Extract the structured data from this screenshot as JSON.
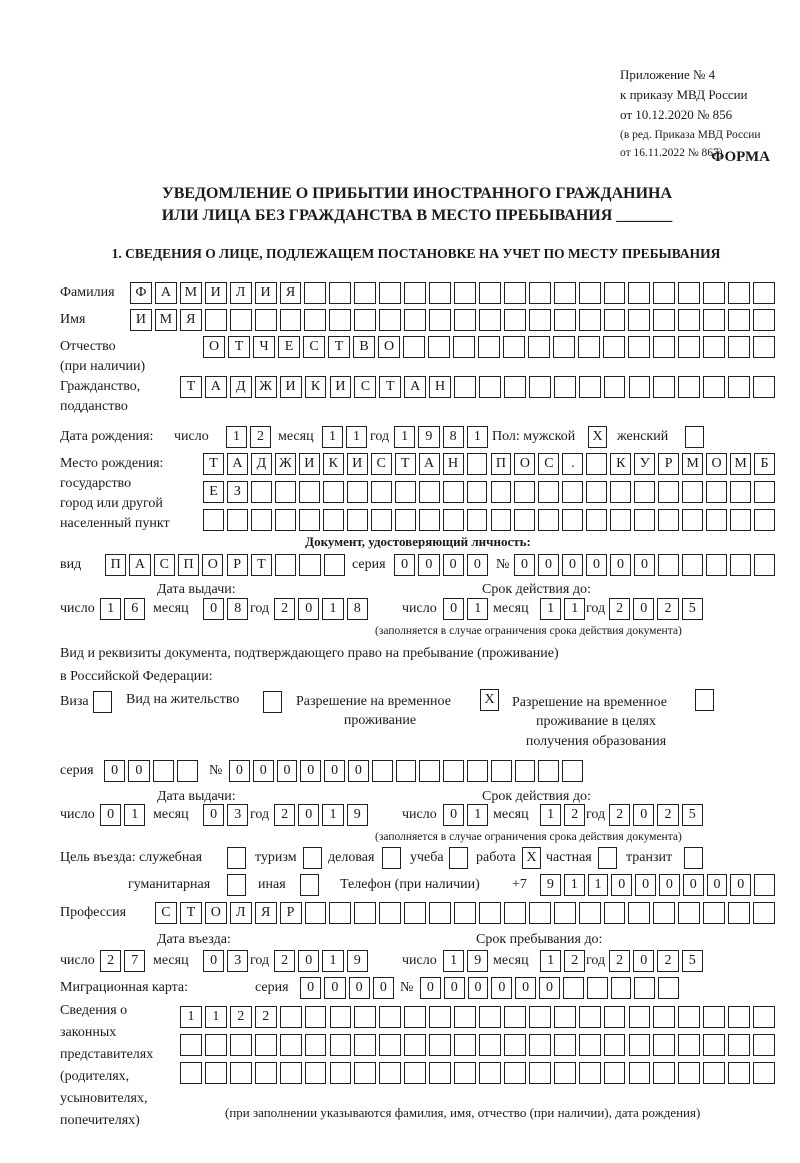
{
  "header": {
    "appendix": [
      "Приложение № 4",
      "к приказу МВД России",
      "от 10.12.2020 № 856"
    ],
    "edition": [
      "(в ред. Приказа МВД России",
      "от 16.11.2022 № 867)"
    ],
    "form_label": "ФОРМА"
  },
  "title": [
    "УВЕДОМЛЕНИЕ О ПРИБЫТИИ ИНОСТРАННОГО ГРАЖДАНИНА",
    "ИЛИ ЛИЦА БЕЗ ГРАЖДАНСТВА В МЕСТО ПРЕБЫВАНИЯ _______"
  ],
  "section1_title": "1. СВЕДЕНИЯ О ЛИЦЕ, ПОДЛЕЖАЩЕМ ПОСТАНОВКЕ НА УЧЕТ ПО МЕСТУ ПРЕБЫВАНИЯ",
  "person": {
    "surname": {
      "label": "Фамилия",
      "value": "ФАМИЛИЯ"
    },
    "name": {
      "label": "Имя",
      "value": "ИМЯ"
    },
    "patronymic": {
      "label": [
        "Отчество",
        "(при наличии)"
      ],
      "value": "ОТЧЕСТВО"
    },
    "citizenship": {
      "label": [
        "Гражданство,",
        "подданство"
      ],
      "value": "ТАДЖИКИСТАН"
    },
    "birth_date": {
      "label": "Дата рождения:",
      "day_label": "число",
      "month_label": "месяц",
      "year_label": "год",
      "day": "12",
      "month": "11",
      "year": "1981"
    },
    "sex": {
      "label": "Пол: мужской",
      "female_label": "женский",
      "male": "X",
      "female": ""
    },
    "birth_place": {
      "label": [
        "Место рождения:",
        "государство",
        "город или другой",
        "населенный пункт"
      ],
      "lines": [
        "ТАДЖИКИСТАН ПОС. КУРМОМБ",
        "ЕЗ",
        ""
      ]
    }
  },
  "id_doc": {
    "title": "Документ, удостоверяющий личность:",
    "type_label": "вид",
    "type": "ПАСПОРТ",
    "series_label": "серия",
    "series": "0000",
    "number_label": "№",
    "number": "000000",
    "issue_label": "Дата выдачи:",
    "valid_label": "Срок действия до:",
    "day_label": "число",
    "month_label": "месяц",
    "year_label": "год",
    "issue": {
      "day": "16",
      "month": "08",
      "year": "2018"
    },
    "valid": {
      "day": "01",
      "month": "11",
      "year": "2025"
    },
    "note": "(заполняется в случае ограничения срока действия документа)"
  },
  "stay_doc": {
    "title": [
      "Вид и реквизиты документа, подтверждающего право на пребывание (проживание)",
      "в Российской Федерации:"
    ],
    "visa_label": "Виза",
    "visa": "",
    "residence_label": "Вид на жительство",
    "residence": "",
    "temp_label": [
      "Разрешение на временное",
      "проживание"
    ],
    "temp": "X",
    "temp_edu_label": [
      "Разрешение на временное",
      "проживание в целях",
      "получения образования"
    ],
    "temp_edu": "",
    "series_label": "серия",
    "series": "00",
    "number_label": "№",
    "number": "000000",
    "issue_label": "Дата выдачи:",
    "valid_label": "Срок действия до:",
    "issue": {
      "day": "01",
      "month": "03",
      "year": "2019"
    },
    "valid": {
      "day": "01",
      "month": "12",
      "year": "2025"
    },
    "note": "(заполняется в случае ограничения срока действия документа)"
  },
  "purpose": {
    "label": "Цель въезда: служебная",
    "options": [
      {
        "label": "туризм",
        "value": ""
      },
      {
        "label": "деловая",
        "value": ""
      },
      {
        "label": "учеба",
        "value": ""
      },
      {
        "label": "работа",
        "value": ""
      },
      {
        "label": "частная",
        "value": "X"
      },
      {
        "label": "транзит",
        "value": ""
      },
      {
        "label": "гуманитарная",
        "value": ""
      },
      {
        "label": "иная",
        "value": ""
      }
    ],
    "official": ""
  },
  "phone": {
    "label": "Телефон (при наличии)",
    "prefix": "+7",
    "value": "911000000"
  },
  "profession": {
    "label": "Профессия",
    "value": "СТОЛЯР"
  },
  "entry": {
    "entry_label": "Дата въезда:",
    "stay_label": "Срок пребывания до:",
    "entry": {
      "day": "27",
      "month": "03",
      "year": "2019"
    },
    "stay": {
      "day": "19",
      "month": "12",
      "year": "2025"
    }
  },
  "migration_card": {
    "label": "Миграционная карта:",
    "series_label": "серия",
    "series": "0000",
    "number_label": "№",
    "number": "000000"
  },
  "representatives": {
    "label": [
      "Сведения о",
      "законных",
      "представителях",
      "(родителях,",
      "усыновителях,",
      "попечителях)"
    ],
    "lines": [
      "1122",
      "",
      ""
    ],
    "note": "(при заполнении указываются фамилия, имя, отчество (при наличии), дата рождения)"
  }
}
